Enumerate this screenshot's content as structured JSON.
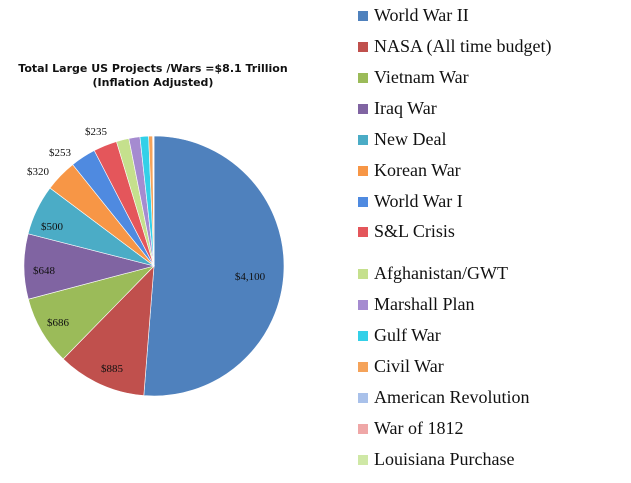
{
  "chart_data": {
    "type": "pie",
    "title_lines": [
      "Total Large US Projects /Wars =$8.1 Trillion",
      "(Inflation Adjusted)"
    ],
    "slices": [
      {
        "label": "World War II",
        "value": 4100,
        "data_label": "$4,100",
        "color": "#4f81bd"
      },
      {
        "label": "NASA (All time budget)",
        "value": 885,
        "data_label": "$885",
        "color": "#c0504d"
      },
      {
        "label": "Vietnam War",
        "value": 686,
        "data_label": "$686",
        "color": "#9bbb59"
      },
      {
        "label": "Iraq War",
        "value": 648,
        "data_label": "$648",
        "color": "#8064a2"
      },
      {
        "label": "New Deal",
        "value": 500,
        "data_label": "$500",
        "color": "#4bacc6"
      },
      {
        "label": " Korean War",
        "value": 320,
        "data_label": "$320",
        "color": "#f79646"
      },
      {
        "label": "World War I",
        "value": 253,
        "data_label": "$253",
        "color": "#4f8ae0"
      },
      {
        "label": "S&L Crisis",
        "value": 235,
        "data_label": "$235",
        "color": "#e4565b"
      },
      {
        "label": "Afghanistan/GWT",
        "value": 125,
        "data_label": "",
        "color": "#c5e08d"
      },
      {
        "label": "Marshall Plan",
        "value": 110,
        "data_label": "",
        "color": "#a58bd0"
      },
      {
        "label": "Gulf War",
        "value": 85,
        "data_label": "",
        "color": "#33d0e8"
      },
      {
        "label": "Civil War",
        "value": 40,
        "data_label": "",
        "color": "#f5a35a"
      },
      {
        "label": "American Revolution",
        "value": 6,
        "data_label": "",
        "color": "#a9c1ea"
      },
      {
        "label": "War of 1812",
        "value": 4,
        "data_label": "",
        "color": "#efa7a7"
      },
      {
        "label": "Louisiana Purchase",
        "value": 3,
        "data_label": "",
        "color": "#cfe8a6"
      }
    ],
    "legend_position": "right"
  }
}
